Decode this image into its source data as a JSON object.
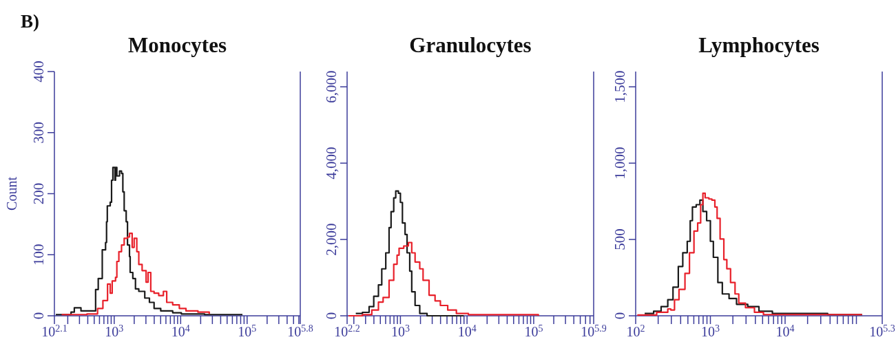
{
  "chart_data": [
    {
      "type": "step",
      "title": "Monocytes",
      "ylabel": "Count",
      "annotations": [
        "B)"
      ],
      "log": "x",
      "xlim": [
        125.9,
        630957
      ],
      "ylim": [
        0,
        400
      ],
      "xticks": [
        {
          "value": 125.9,
          "label": "10$^{2.1}$"
        },
        {
          "value": 200,
          "label": null
        },
        {
          "value": 300,
          "label": null
        },
        {
          "value": 400,
          "label": null
        },
        {
          "value": 500,
          "label": null
        },
        {
          "value": 600,
          "label": null
        },
        {
          "value": 700,
          "label": null
        },
        {
          "value": 800,
          "label": null
        },
        {
          "value": 900,
          "label": null
        },
        {
          "value": 1000,
          "label": "10$^{3}$"
        },
        {
          "value": 2000,
          "label": null
        },
        {
          "value": 3000,
          "label": null
        },
        {
          "value": 4000,
          "label": null
        },
        {
          "value": 5000,
          "label": null
        },
        {
          "value": 6000,
          "label": null
        },
        {
          "value": 7000,
          "label": null
        },
        {
          "value": 8000,
          "label": null
        },
        {
          "value": 9000,
          "label": null
        },
        {
          "value": 10000,
          "label": "10$^{4}$"
        },
        {
          "value": 20000,
          "label": null
        },
        {
          "value": 30000,
          "label": null
        },
        {
          "value": 40000,
          "label": null
        },
        {
          "value": 50000,
          "label": null
        },
        {
          "value": 60000,
          "label": null
        },
        {
          "value": 70000,
          "label": null
        },
        {
          "value": 80000,
          "label": null
        },
        {
          "value": 90000,
          "label": null
        },
        {
          "value": 100000,
          "label": "10$^{5}$"
        },
        {
          "value": 200000,
          "label": null
        },
        {
          "value": 300000,
          "label": null
        },
        {
          "value": 400000,
          "label": null
        },
        {
          "value": 500000,
          "label": null
        },
        {
          "value": 600000,
          "label": null
        },
        {
          "value": 630957,
          "label": "10$^{5.8}$"
        }
      ],
      "yticks": [
        0,
        100,
        200,
        300,
        400
      ],
      "series": [
        {
          "color": "#1a1a1a",
          "x": [
            132,
            224,
            251,
            316,
            525,
            575,
            661,
            741,
            767,
            787,
            871,
            912,
            955,
            1023,
            1047,
            1096,
            1202,
            1288,
            1349,
            1413,
            1514,
            1585,
            1698,
            1738,
            1905,
            2089,
            2344,
            2884,
            3388,
            3981,
            5012,
            7586,
            10230,
            13180,
            22910,
            85110
          ],
          "values": [
            2,
            6,
            13,
            8,
            43,
            61,
            108,
            120,
            154,
            180,
            186,
            222,
            243,
            222,
            243,
            229,
            237,
            233,
            203,
            172,
            154,
            116,
            97,
            71,
            61,
            44,
            40,
            29,
            22,
            12,
            8,
            5,
            3,
            3,
            2,
            2
          ]
        },
        {
          "color": "#e8202a",
          "x": [
            162,
            389,
            562,
            676,
            794,
            871,
            933,
            1047,
            1096,
            1175,
            1288,
            1413,
            1585,
            1698,
            1862,
            1995,
            2188,
            2344,
            2630,
            3020,
            3236,
            3548,
            3981,
            4677,
            5495,
            6166,
            7586,
            9550,
            12020,
            18200,
            26920
          ],
          "values": [
            2,
            3,
            12,
            25,
            52,
            37,
            57,
            63,
            89,
            105,
            116,
            127,
            129,
            135,
            112,
            127,
            105,
            84,
            74,
            55,
            71,
            40,
            37,
            33,
            40,
            22,
            18,
            12,
            8,
            6,
            3
          ]
        }
      ]
    },
    {
      "type": "step",
      "title": "Granulocytes",
      "log": "x",
      "xlim": [
        158.5,
        794328
      ],
      "ylim": [
        0,
        6400
      ],
      "xticks": [
        {
          "value": 158.5,
          "label": "10$^{2.2}$"
        },
        {
          "value": 200,
          "label": null
        },
        {
          "value": 300,
          "label": null
        },
        {
          "value": 400,
          "label": null
        },
        {
          "value": 500,
          "label": null
        },
        {
          "value": 600,
          "label": null
        },
        {
          "value": 700,
          "label": null
        },
        {
          "value": 800,
          "label": null
        },
        {
          "value": 900,
          "label": null
        },
        {
          "value": 1000,
          "label": "10$^{3}$"
        },
        {
          "value": 2000,
          "label": null
        },
        {
          "value": 3000,
          "label": null
        },
        {
          "value": 4000,
          "label": null
        },
        {
          "value": 5000,
          "label": null
        },
        {
          "value": 6000,
          "label": null
        },
        {
          "value": 7000,
          "label": null
        },
        {
          "value": 8000,
          "label": null
        },
        {
          "value": 9000,
          "label": null
        },
        {
          "value": 10000,
          "label": "10$^{4}$"
        },
        {
          "value": 20000,
          "label": null
        },
        {
          "value": 30000,
          "label": null
        },
        {
          "value": 40000,
          "label": null
        },
        {
          "value": 50000,
          "label": null
        },
        {
          "value": 60000,
          "label": null
        },
        {
          "value": 70000,
          "label": null
        },
        {
          "value": 80000,
          "label": null
        },
        {
          "value": 90000,
          "label": null
        },
        {
          "value": 100000,
          "label": "10$^{5}$"
        },
        {
          "value": 200000,
          "label": null
        },
        {
          "value": 300000,
          "label": null
        },
        {
          "value": 400000,
          "label": null
        },
        {
          "value": 500000,
          "label": null
        },
        {
          "value": 600000,
          "label": null
        },
        {
          "value": 700000,
          "label": null
        },
        {
          "value": 794328,
          "label": "10$^{5.9}$"
        }
      ],
      "yticks": [
        0,
        {
          "value": 2000,
          "label": "2,000"
        },
        {
          "value": 4000,
          "label": "4,000"
        },
        {
          "value": 6000,
          "label": "6,000"
        }
      ],
      "series": [
        {
          "color": "#1a1a1a",
          "x": [
            214,
            269,
            339,
            398,
            468,
            525,
            603,
            676,
            724,
            794,
            851,
            933,
            1000,
            1072,
            1175,
            1259,
            1380,
            1479,
            1660,
            1950,
            2512,
            8913
          ],
          "values": [
            60,
            90,
            240,
            510,
            810,
            1230,
            1650,
            2310,
            2730,
            3090,
            3270,
            3210,
            2970,
            2430,
            2130,
            1650,
            1170,
            630,
            270,
            60,
            0,
            0
          ]
        },
        {
          "color": "#e8202a",
          "x": [
            166,
            269,
            372,
            468,
            550,
            676,
            794,
            891,
            955,
            1122,
            1318,
            1479,
            1660,
            1950,
            2188,
            2692,
            3311,
            3981,
            5129,
            6918,
            10470,
            117500
          ],
          "values": [
            0,
            30,
            150,
            360,
            480,
            930,
            1350,
            1590,
            1770,
            1830,
            1920,
            1650,
            1410,
            1230,
            930,
            540,
            390,
            270,
            150,
            60,
            30,
            0
          ]
        }
      ]
    },
    {
      "type": "step",
      "title": "Lymphocytes",
      "log": "x",
      "xlim": [
        100,
        199526
      ],
      "ylim": [
        0,
        1600
      ],
      "xticks": [
        {
          "value": 100,
          "label": "10$^{2}$"
        },
        {
          "value": 200,
          "label": null
        },
        {
          "value": 300,
          "label": null
        },
        {
          "value": 400,
          "label": null
        },
        {
          "value": 500,
          "label": null
        },
        {
          "value": 600,
          "label": null
        },
        {
          "value": 700,
          "label": null
        },
        {
          "value": 800,
          "label": null
        },
        {
          "value": 900,
          "label": null
        },
        {
          "value": 1000,
          "label": "10$^{3}$"
        },
        {
          "value": 2000,
          "label": null
        },
        {
          "value": 3000,
          "label": null
        },
        {
          "value": 4000,
          "label": null
        },
        {
          "value": 5000,
          "label": null
        },
        {
          "value": 6000,
          "label": null
        },
        {
          "value": 7000,
          "label": null
        },
        {
          "value": 8000,
          "label": null
        },
        {
          "value": 9000,
          "label": null
        },
        {
          "value": 10000,
          "label": "10$^{4}$"
        },
        {
          "value": 20000,
          "label": null
        },
        {
          "value": 30000,
          "label": null
        },
        {
          "value": 40000,
          "label": null
        },
        {
          "value": 50000,
          "label": null
        },
        {
          "value": 60000,
          "label": null
        },
        {
          "value": 70000,
          "label": null
        },
        {
          "value": 80000,
          "label": null
        },
        {
          "value": 90000,
          "label": null
        },
        {
          "value": 199526,
          "label": "10$^{5.3}$"
        }
      ],
      "yticks": [
        0,
        500,
        {
          "value": 1000,
          "label": "1,000"
        },
        {
          "value": 1500,
          "label": "1,500"
        }
      ],
      "series": [
        {
          "color": "#1a1a1a",
          "x": [
            132,
            174,
            219,
            269,
            316,
            372,
            427,
            490,
            537,
            575,
            646,
            724,
            794,
            891,
            1000,
            1096,
            1259,
            1445,
            1778,
            2239,
            3162,
            4467,
            6761,
            37150,
            107200
          ],
          "values": [
            15,
            30,
            60,
            105,
            188,
            323,
            413,
            488,
            623,
            713,
            728,
            758,
            683,
            623,
            488,
            383,
            218,
            143,
            113,
            75,
            60,
            30,
            15,
            8,
            8
          ]
        },
        {
          "color": "#e8202a",
          "x": [
            105,
            191,
            269,
            295,
            331,
            380,
            457,
            525,
            603,
            676,
            741,
            794,
            851,
            955,
            1047,
            1148,
            1230,
            1349,
            1514,
            1660,
            1862,
            2138,
            2399,
            2951,
            3890,
            5129,
            107200
          ],
          "values": [
            5,
            23,
            45,
            38,
            105,
            173,
            278,
            413,
            555,
            608,
            728,
            803,
            773,
            765,
            758,
            713,
            638,
            503,
            368,
            308,
            218,
            143,
            83,
            53,
            23,
            8,
            8
          ]
        }
      ]
    }
  ]
}
